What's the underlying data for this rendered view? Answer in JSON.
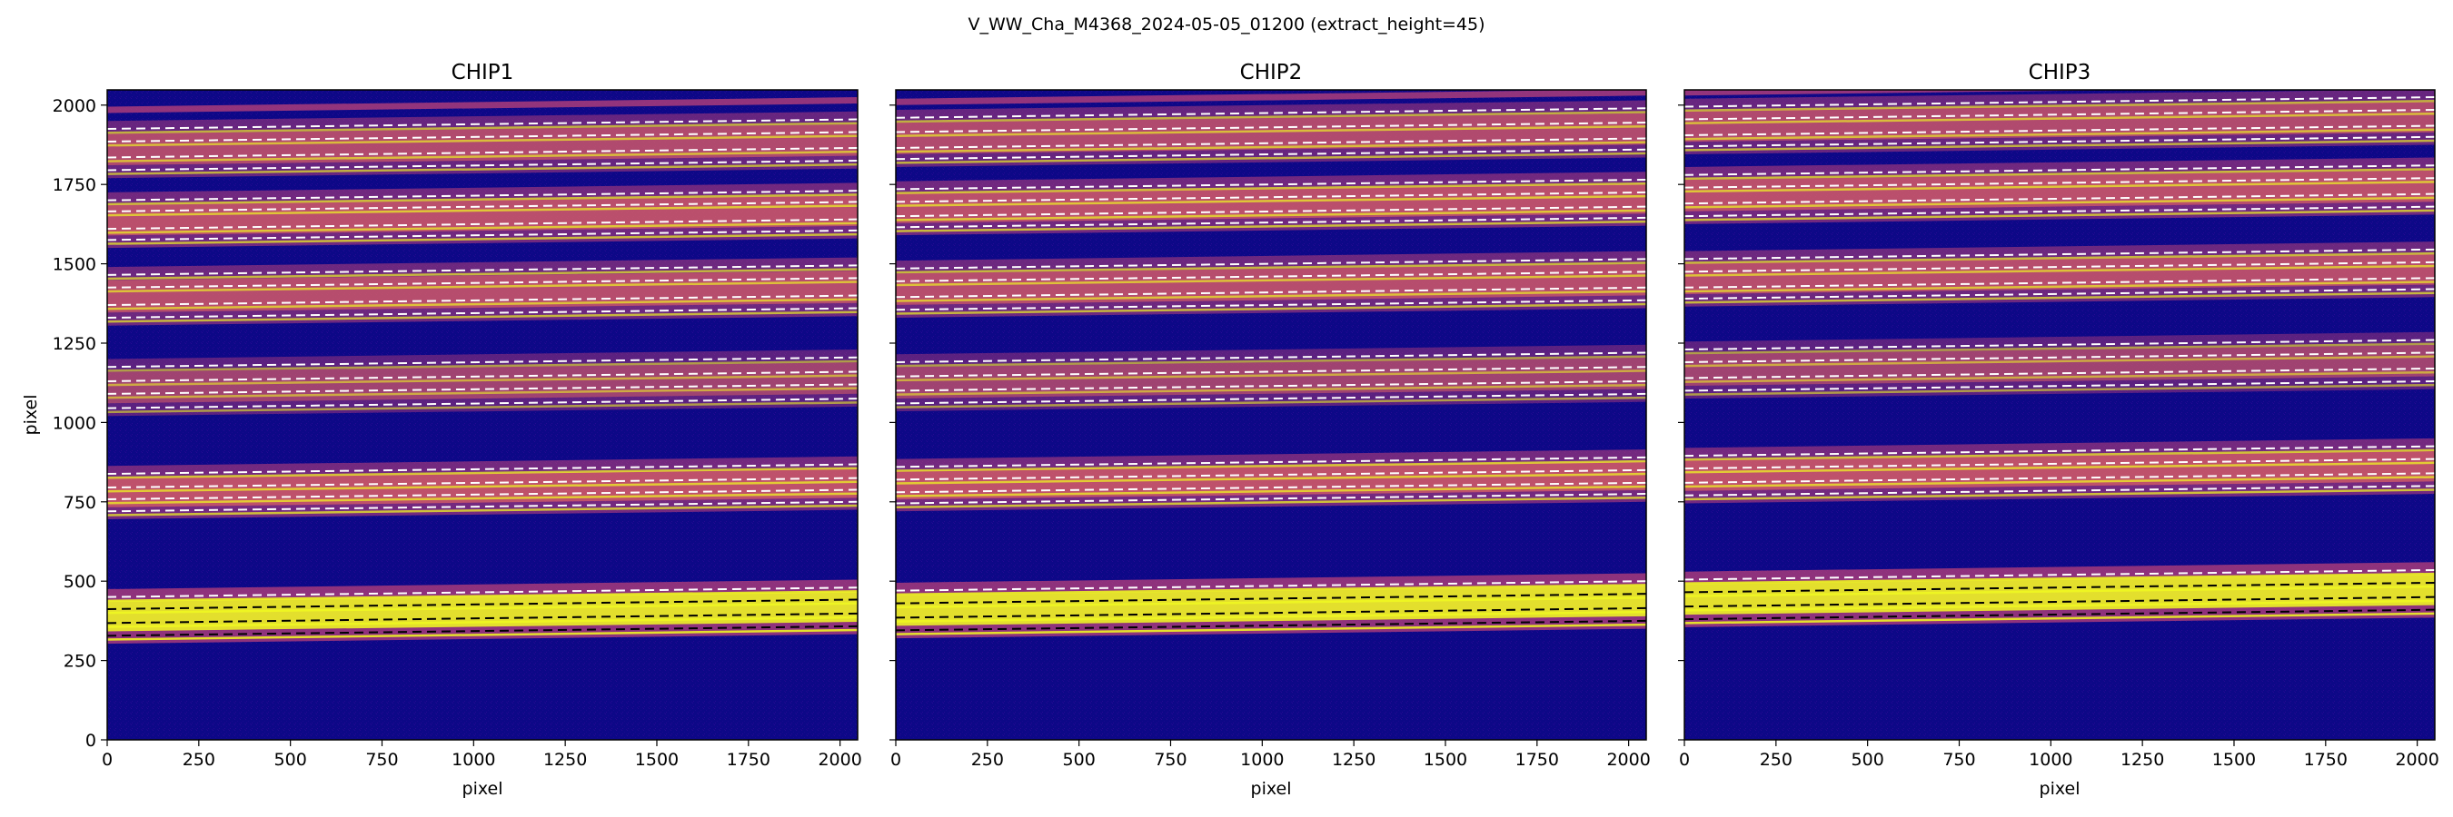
{
  "chart_data": {
    "type": "heatmap",
    "title": "V_WW_Cha_M4368_2024-05-05_01200  (extract_height=45)",
    "colormap": "plasma",
    "colors": {
      "background": "#0d0887",
      "trace_mid": "#cc4778",
      "trace_hot": "#f0f921",
      "dash_light": "#ffffff",
      "dash_dark": "#000000"
    },
    "xlim": [
      0,
      2048
    ],
    "ylim": [
      0,
      2048
    ],
    "x_ticks": [
      "0",
      "250",
      "500",
      "750",
      "1000",
      "1250",
      "1500",
      "1750",
      "2000"
    ],
    "y_ticks": [
      "0",
      "250",
      "500",
      "750",
      "1000",
      "1250",
      "1500",
      "1750",
      "2000"
    ],
    "panels": [
      {
        "title": "CHIP1",
        "xlabel": "pixel",
        "ylabel": "pixel",
        "orders": [
          {
            "center": 365,
            "intensity": 0.95,
            "strips": [
              450,
              412,
              368,
              328
            ]
          },
          {
            "center": 740,
            "intensity": 0.65,
            "strips": [
              838,
              795,
              758,
              720
            ]
          },
          {
            "center": 1105,
            "intensity": 0.35,
            "strips": [
              1175,
              1130,
              1090,
              1045
            ]
          },
          {
            "center": 1390,
            "intensity": 0.55,
            "strips": [
              1465,
              1425,
              1370,
              1330
            ]
          },
          {
            "center": 1630,
            "intensity": 0.6,
            "strips": [
              1700,
              1665,
              1610,
              1575
            ]
          },
          {
            "center": 1850,
            "intensity": 0.5,
            "strips": [
              1925,
              1885,
              1835,
              1795
            ]
          }
        ],
        "top_partial": {
          "center": 1985,
          "intensity": 0.4
        }
      },
      {
        "title": "CHIP2",
        "xlabel": "pixel",
        "ylabel": "",
        "orders": [
          {
            "center": 390,
            "intensity": 0.95,
            "strips": [
              470,
              430,
              385,
              345
            ]
          },
          {
            "center": 790,
            "intensity": 0.65,
            "strips": [
              860,
              820,
              780,
              745
            ]
          },
          {
            "center": 1120,
            "intensity": 0.35,
            "strips": [
              1190,
              1145,
              1100,
              1060
            ]
          },
          {
            "center": 1410,
            "intensity": 0.55,
            "strips": [
              1485,
              1445,
              1395,
              1355
            ]
          },
          {
            "center": 1665,
            "intensity": 0.6,
            "strips": [
              1735,
              1695,
              1650,
              1615
            ]
          },
          {
            "center": 1880,
            "intensity": 0.5,
            "strips": [
              1960,
              1915,
              1865,
              1830
            ]
          }
        ],
        "top_partial": {
          "center": 2010,
          "intensity": 0.4
        }
      },
      {
        "title": "CHIP3",
        "xlabel": "pixel",
        "ylabel": "",
        "orders": [
          {
            "center": 420,
            "intensity": 0.95,
            "strips": [
              505,
              465,
              420,
              380
            ]
          },
          {
            "center": 815,
            "intensity": 0.65,
            "strips": [
              895,
              855,
              810,
              770
            ]
          },
          {
            "center": 1155,
            "intensity": 0.35,
            "strips": [
              1230,
              1190,
              1140,
              1100
            ]
          },
          {
            "center": 1440,
            "intensity": 0.55,
            "strips": [
              1515,
              1475,
              1425,
              1390
            ]
          },
          {
            "center": 1710,
            "intensity": 0.6,
            "strips": [
              1780,
              1740,
              1690,
              1650
            ]
          },
          {
            "center": 1910,
            "intensity": 0.5,
            "strips": [
              1995,
              1955,
              1905,
              1870
            ]
          }
        ],
        "top_partial": {
          "center": 2040,
          "intensity": 0.4
        }
      }
    ]
  }
}
